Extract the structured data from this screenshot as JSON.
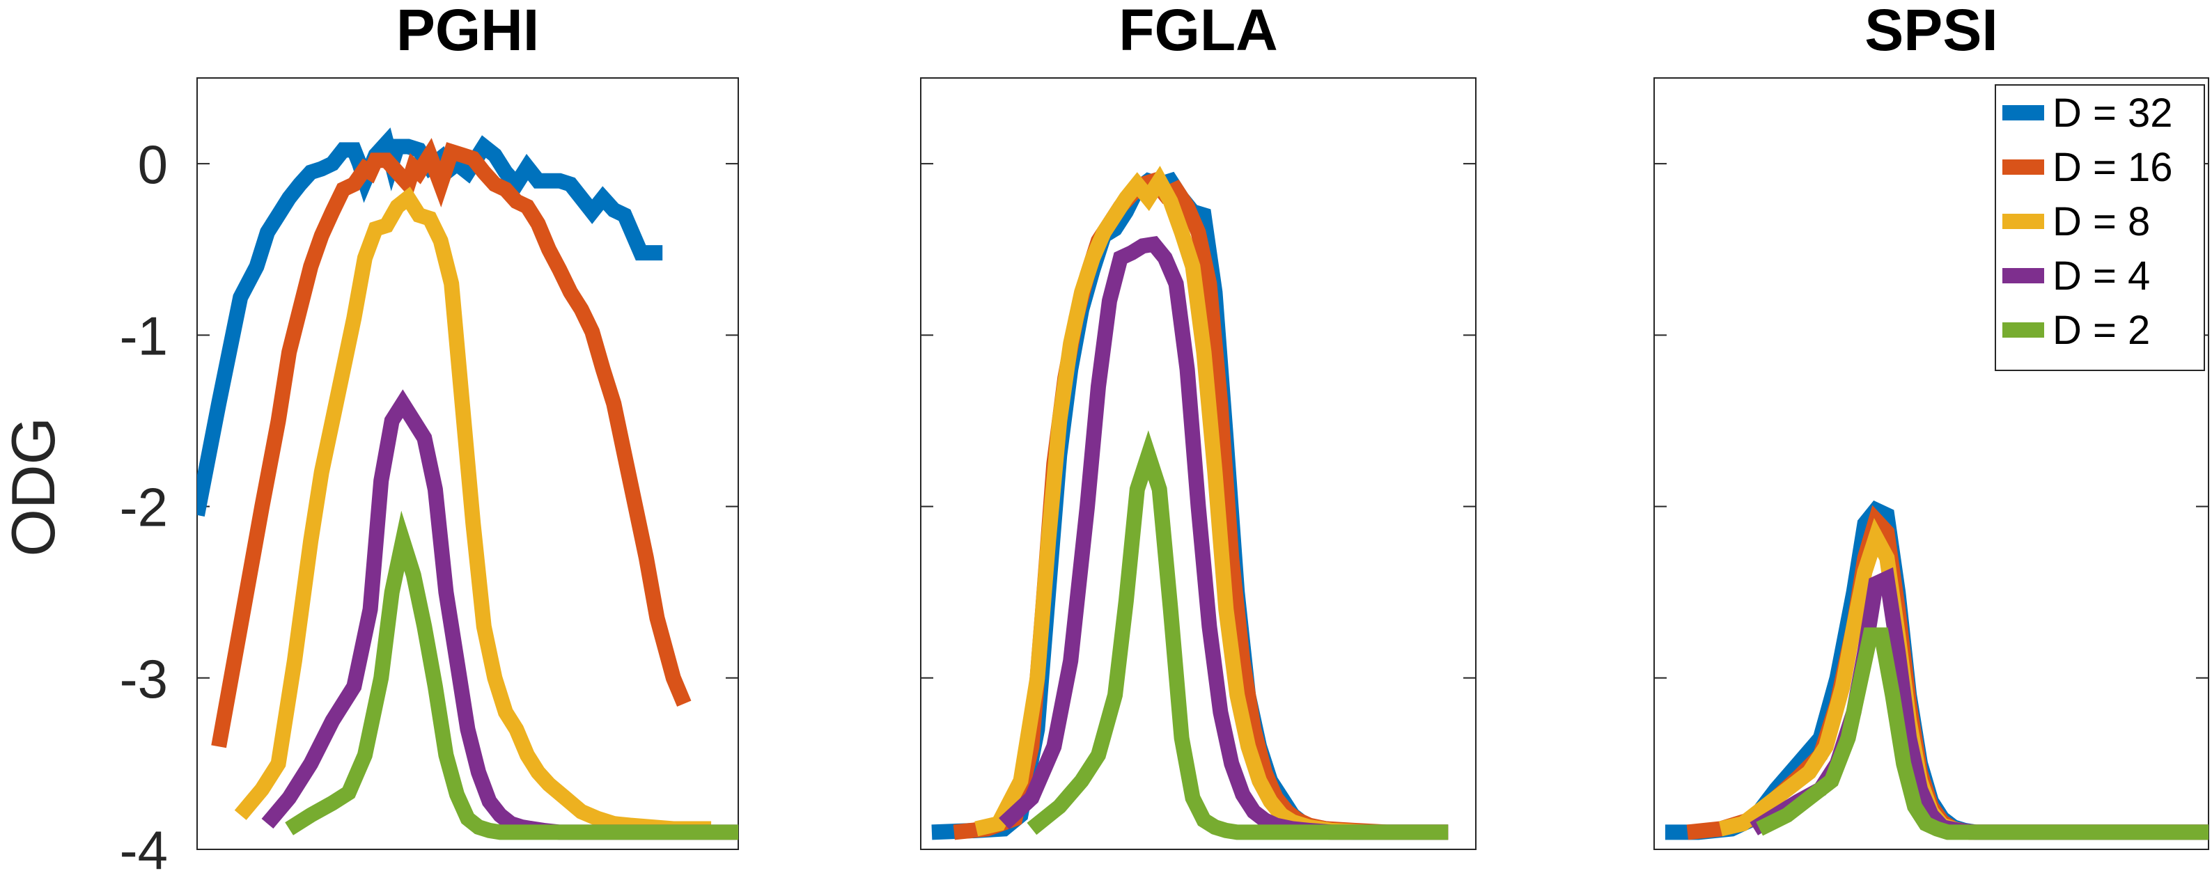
{
  "chart_data": [
    {
      "type": "line",
      "title": "PGHI",
      "xlabel": "",
      "ylabel": "ODG",
      "ylim": [
        -4,
        0.5
      ],
      "yticks": [
        -4,
        -3,
        -2,
        -1,
        0
      ],
      "ytick_labels": [
        "-4",
        "-3",
        "-2",
        "-1",
        "0"
      ],
      "xlim": [
        0,
        100
      ],
      "series": [
        {
          "name": "D = 32",
          "color": "#0072BD",
          "x": [
            0,
            4,
            8,
            11,
            13,
            15,
            17,
            19,
            21,
            23,
            25,
            27,
            29,
            30,
            31,
            33,
            35,
            36,
            37,
            39,
            41,
            43,
            45,
            46,
            48,
            50,
            53,
            55,
            57,
            59,
            61,
            63,
            65,
            67,
            69,
            71,
            73,
            75,
            77,
            79,
            82,
            84,
            86
          ],
          "y": [
            -2.05,
            -1.4,
            -0.78,
            -0.6,
            -0.4,
            -0.3,
            -0.2,
            -0.12,
            -0.05,
            -0.03,
            0.0,
            0.08,
            0.08,
            0.0,
            -0.1,
            0.05,
            0.12,
            0.0,
            0.1,
            0.1,
            0.08,
            -0.02,
            0.03,
            -0.05,
            0.0,
            -0.05,
            0.1,
            0.05,
            -0.05,
            -0.12,
            -0.02,
            -0.1,
            -0.1,
            -0.1,
            -0.12,
            -0.2,
            -0.28,
            -0.2,
            -0.27,
            -0.3,
            -0.52,
            -0.52,
            -0.52
          ]
        },
        {
          "name": "D = 16",
          "color": "#D95319",
          "x": [
            4,
            8,
            12,
            15,
            17,
            19,
            21,
            23,
            25,
            27,
            29,
            31,
            32,
            33,
            35,
            37,
            39,
            40,
            41,
            43,
            45,
            47,
            49,
            51,
            53,
            55,
            57,
            59,
            61,
            63,
            65,
            67,
            69,
            71,
            73,
            75,
            77,
            79,
            81,
            83,
            85,
            88,
            90
          ],
          "y": [
            -3.4,
            -2.7,
            -2.0,
            -1.5,
            -1.1,
            -0.85,
            -0.6,
            -0.42,
            -0.28,
            -0.15,
            -0.12,
            -0.03,
            -0.05,
            0.02,
            0.02,
            -0.05,
            -0.12,
            -0.02,
            -0.05,
            0.05,
            -0.12,
            0.07,
            0.05,
            0.03,
            -0.05,
            -0.12,
            -0.15,
            -0.22,
            -0.25,
            -0.35,
            -0.5,
            -0.62,
            -0.75,
            -0.85,
            -0.98,
            -1.2,
            -1.4,
            -1.7,
            -2.0,
            -2.3,
            -2.65,
            -3.0,
            -3.15
          ]
        },
        {
          "name": "D = 8",
          "color": "#EDB120",
          "x": [
            8,
            12,
            15,
            18,
            21,
            23,
            25,
            27,
            29,
            31,
            33,
            35,
            37,
            39,
            41,
            43,
            45,
            47,
            49,
            51,
            53,
            55,
            57,
            59,
            61,
            63,
            65,
            68,
            71,
            74,
            77,
            80,
            84,
            88,
            95
          ],
          "y": [
            -3.8,
            -3.65,
            -3.5,
            -2.9,
            -2.2,
            -1.8,
            -1.5,
            -1.2,
            -0.9,
            -0.55,
            -0.38,
            -0.36,
            -0.25,
            -0.2,
            -0.3,
            -0.32,
            -0.45,
            -0.7,
            -1.4,
            -2.1,
            -2.7,
            -3.0,
            -3.2,
            -3.3,
            -3.45,
            -3.55,
            -3.62,
            -3.7,
            -3.78,
            -3.82,
            -3.85,
            -3.86,
            -3.87,
            -3.88,
            -3.88
          ]
        },
        {
          "name": "D = 4",
          "color": "#7E2F8E",
          "x": [
            13,
            17,
            21,
            25,
            29,
            32,
            34,
            36,
            38,
            40,
            42,
            44,
            46,
            48,
            50,
            52,
            54,
            56,
            58,
            60,
            62,
            64,
            67,
            70,
            74,
            78,
            82,
            86,
            90,
            95,
            100
          ],
          "y": [
            -3.85,
            -3.7,
            -3.5,
            -3.25,
            -3.05,
            -2.6,
            -1.85,
            -1.5,
            -1.4,
            -1.5,
            -1.6,
            -1.9,
            -2.5,
            -2.9,
            -3.3,
            -3.55,
            -3.72,
            -3.8,
            -3.85,
            -3.87,
            -3.88,
            -3.89,
            -3.9,
            -3.9,
            -3.9,
            -3.9,
            -3.9,
            -3.9,
            -3.9,
            -3.9,
            -3.9
          ]
        },
        {
          "name": "D = 2",
          "color": "#77AC30",
          "x": [
            17,
            21,
            25,
            28,
            31,
            34,
            36,
            38,
            40,
            42,
            44,
            46,
            48,
            50,
            52,
            54,
            56,
            58,
            60,
            62,
            65,
            70,
            80,
            90,
            100
          ],
          "y": [
            -3.88,
            -3.8,
            -3.73,
            -3.67,
            -3.45,
            -3.0,
            -2.5,
            -2.2,
            -2.4,
            -2.7,
            -3.05,
            -3.45,
            -3.68,
            -3.82,
            -3.87,
            -3.89,
            -3.9,
            -3.9,
            -3.9,
            -3.9,
            -3.9,
            -3.9,
            -3.9,
            -3.9,
            -3.9
          ]
        }
      ]
    },
    {
      "type": "line",
      "title": "FGLA",
      "ylim": [
        -4,
        0.5
      ],
      "xlim": [
        0,
        100
      ],
      "series": [
        {
          "name": "D = 32",
          "color": "#0072BD",
          "x": [
            2,
            10,
            15,
            18,
            21,
            23,
            25,
            27,
            29,
            31,
            33,
            35,
            37,
            39,
            41,
            43,
            45,
            47,
            49,
            51,
            53,
            55,
            57,
            59,
            61,
            63,
            65,
            67,
            69,
            71,
            73,
            75,
            78,
            82,
            86,
            90,
            95
          ],
          "y": [
            -3.9,
            -3.89,
            -3.88,
            -3.8,
            -3.3,
            -2.5,
            -1.7,
            -1.2,
            -0.85,
            -0.62,
            -0.42,
            -0.38,
            -0.28,
            -0.15,
            -0.1,
            -0.12,
            -0.1,
            -0.2,
            -0.28,
            -0.3,
            -0.75,
            -1.6,
            -2.5,
            -3.1,
            -3.4,
            -3.6,
            -3.7,
            -3.8,
            -3.85,
            -3.87,
            -3.88,
            -3.89,
            -3.9,
            -3.9,
            -3.9,
            -3.9,
            -3.9
          ]
        },
        {
          "name": "D = 16",
          "color": "#D95319",
          "x": [
            6,
            12,
            17,
            20,
            22,
            24,
            26,
            28,
            30,
            32,
            34,
            36,
            38,
            40,
            42,
            44,
            46,
            48,
            50,
            52,
            54,
            56,
            58,
            60,
            62,
            64,
            66,
            68,
            70,
            73,
            78,
            84,
            90,
            95
          ],
          "y": [
            -3.9,
            -3.88,
            -3.82,
            -3.4,
            -2.6,
            -1.75,
            -1.25,
            -0.9,
            -0.65,
            -0.45,
            -0.35,
            -0.25,
            -0.18,
            -0.12,
            -0.1,
            -0.18,
            -0.15,
            -0.25,
            -0.4,
            -0.7,
            -1.4,
            -2.3,
            -2.9,
            -3.3,
            -3.55,
            -3.7,
            -3.78,
            -3.83,
            -3.86,
            -3.88,
            -3.89,
            -3.9,
            -3.9,
            -3.9
          ]
        },
        {
          "name": "D = 8",
          "color": "#EDB120",
          "x": [
            10,
            14,
            18,
            21,
            23,
            25,
            27,
            29,
            31,
            33,
            35,
            37,
            39,
            41,
            43,
            45,
            47,
            49,
            51,
            53,
            55,
            57,
            59,
            61,
            63,
            65,
            67,
            70,
            74,
            80,
            88,
            95
          ],
          "y": [
            -3.88,
            -3.85,
            -3.6,
            -3.0,
            -2.2,
            -1.5,
            -1.05,
            -0.75,
            -0.55,
            -0.4,
            -0.3,
            -0.2,
            -0.12,
            -0.2,
            -0.1,
            -0.22,
            -0.4,
            -0.6,
            -1.1,
            -1.8,
            -2.6,
            -3.1,
            -3.4,
            -3.6,
            -3.72,
            -3.8,
            -3.84,
            -3.87,
            -3.89,
            -3.9,
            -3.9,
            -3.9
          ]
        },
        {
          "name": "D = 4",
          "color": "#7E2F8E",
          "x": [
            15,
            20,
            24,
            27,
            30,
            32,
            34,
            36,
            38,
            40,
            42,
            44,
            46,
            48,
            50,
            52,
            54,
            56,
            58,
            60,
            62,
            64,
            67,
            70,
            74,
            80,
            88,
            95
          ],
          "y": [
            -3.85,
            -3.7,
            -3.4,
            -2.9,
            -2.0,
            -1.3,
            -0.8,
            -0.55,
            -0.52,
            -0.48,
            -0.47,
            -0.55,
            -0.7,
            -1.2,
            -2.0,
            -2.7,
            -3.2,
            -3.5,
            -3.68,
            -3.78,
            -3.83,
            -3.86,
            -3.88,
            -3.89,
            -3.9,
            -3.9,
            -3.9,
            -3.9
          ]
        },
        {
          "name": "D = 2",
          "color": "#77AC30",
          "x": [
            20,
            25,
            29,
            32,
            35,
            37,
            39,
            41,
            43,
            45,
            47,
            49,
            51,
            53,
            55,
            57,
            59,
            62,
            66,
            72,
            80,
            90,
            95
          ],
          "y": [
            -3.88,
            -3.75,
            -3.6,
            -3.45,
            -3.1,
            -2.55,
            -1.9,
            -1.7,
            -1.9,
            -2.6,
            -3.35,
            -3.7,
            -3.83,
            -3.87,
            -3.89,
            -3.9,
            -3.9,
            -3.9,
            -3.9,
            -3.9,
            -3.9,
            -3.9,
            -3.9
          ]
        }
      ]
    },
    {
      "type": "line",
      "title": "SPSI",
      "ylim": [
        -4,
        0.5
      ],
      "xlim": [
        0,
        100
      ],
      "legend_position": "top-right",
      "series": [
        {
          "name": "D = 32",
          "color": "#0072BD",
          "x": [
            2,
            8,
            14,
            18,
            22,
            26,
            30,
            33,
            36,
            38,
            40,
            42,
            44,
            46,
            48,
            50,
            52,
            54,
            56,
            58,
            60,
            63,
            67,
            72,
            80,
            90,
            100
          ],
          "y": [
            -3.9,
            -3.9,
            -3.88,
            -3.82,
            -3.65,
            -3.5,
            -3.35,
            -3.0,
            -2.5,
            -2.1,
            -2.02,
            -2.05,
            -2.5,
            -3.1,
            -3.5,
            -3.72,
            -3.82,
            -3.87,
            -3.89,
            -3.9,
            -3.9,
            -3.9,
            -3.9,
            -3.9,
            -3.9,
            -3.9,
            -3.9
          ]
        },
        {
          "name": "D = 16",
          "color": "#D95319",
          "x": [
            6,
            12,
            18,
            22,
            26,
            30,
            33,
            36,
            38,
            40,
            42,
            44,
            46,
            48,
            50,
            52,
            54,
            57,
            60,
            65,
            72,
            80,
            90,
            100
          ],
          "y": [
            -3.9,
            -3.88,
            -3.82,
            -3.7,
            -3.58,
            -3.45,
            -3.15,
            -2.7,
            -2.3,
            -2.08,
            -2.15,
            -2.6,
            -3.15,
            -3.55,
            -3.75,
            -3.84,
            -3.88,
            -3.9,
            -3.9,
            -3.9,
            -3.9,
            -3.9,
            -3.9,
            -3.9
          ]
        },
        {
          "name": "D = 8",
          "color": "#EDB120",
          "x": [
            12,
            16,
            20,
            24,
            28,
            31,
            34,
            36,
            38,
            40,
            42,
            44,
            46,
            48,
            50,
            52,
            55,
            58,
            62,
            70,
            80,
            90,
            100
          ],
          "y": [
            -3.88,
            -3.85,
            -3.75,
            -3.65,
            -3.55,
            -3.4,
            -3.05,
            -2.7,
            -2.38,
            -2.18,
            -2.3,
            -2.75,
            -3.25,
            -3.6,
            -3.78,
            -3.86,
            -3.89,
            -3.9,
            -3.9,
            -3.9,
            -3.9,
            -3.9,
            -3.9
          ]
        },
        {
          "name": "D = 4",
          "color": "#7E2F8E",
          "x": [
            18,
            22,
            26,
            30,
            33,
            36,
            38,
            40,
            42,
            44,
            46,
            48,
            50,
            52,
            55,
            58,
            62,
            70,
            80,
            90,
            100
          ],
          "y": [
            -3.88,
            -3.8,
            -3.72,
            -3.65,
            -3.5,
            -3.2,
            -2.85,
            -2.45,
            -2.42,
            -2.85,
            -3.35,
            -3.65,
            -3.8,
            -3.87,
            -3.89,
            -3.9,
            -3.9,
            -3.9,
            -3.9,
            -3.9,
            -3.9
          ]
        },
        {
          "name": "D = 2",
          "color": "#77AC30",
          "x": [
            19,
            24,
            28,
            32,
            35,
            37,
            39,
            41,
            43,
            45,
            47,
            49,
            51,
            53,
            56,
            60,
            66,
            75,
            85,
            100
          ],
          "y": [
            -3.88,
            -3.8,
            -3.7,
            -3.6,
            -3.35,
            -3.05,
            -2.75,
            -2.75,
            -3.1,
            -3.5,
            -3.75,
            -3.85,
            -3.88,
            -3.9,
            -3.9,
            -3.9,
            -3.9,
            -3.9,
            -3.9,
            -3.9
          ]
        }
      ]
    }
  ]
}
